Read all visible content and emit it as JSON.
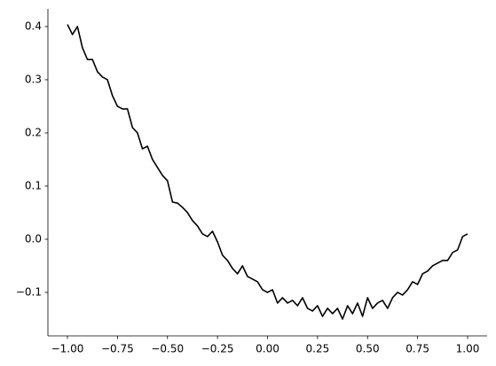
{
  "chart_data": {
    "type": "line",
    "x": [
      -1.0,
      -0.975,
      -0.95,
      -0.925,
      -0.9,
      -0.875,
      -0.85,
      -0.825,
      -0.8,
      -0.775,
      -0.75,
      -0.725,
      -0.7,
      -0.675,
      -0.65,
      -0.625,
      -0.6,
      -0.575,
      -0.55,
      -0.525,
      -0.5,
      -0.475,
      -0.45,
      -0.425,
      -0.4,
      -0.375,
      -0.35,
      -0.325,
      -0.3,
      -0.275,
      -0.25,
      -0.225,
      -0.2,
      -0.175,
      -0.15,
      -0.125,
      -0.1,
      -0.075,
      -0.05,
      -0.025,
      0.0,
      0.025,
      0.05,
      0.075,
      0.1,
      0.125,
      0.15,
      0.175,
      0.2,
      0.225,
      0.25,
      0.275,
      0.3,
      0.325,
      0.35,
      0.375,
      0.4,
      0.425,
      0.45,
      0.475,
      0.5,
      0.525,
      0.55,
      0.575,
      0.6,
      0.625,
      0.65,
      0.675,
      0.7,
      0.725,
      0.75,
      0.775,
      0.8,
      0.825,
      0.85,
      0.875,
      0.9,
      0.925,
      0.95,
      0.975,
      1.0
    ],
    "series": [
      {
        "color": "#000000",
        "values": [
          0.404,
          0.385,
          0.4,
          0.36,
          0.338,
          0.338,
          0.315,
          0.305,
          0.3,
          0.27,
          0.25,
          0.245,
          0.245,
          0.21,
          0.2,
          0.17,
          0.175,
          0.15,
          0.135,
          0.12,
          0.11,
          0.07,
          0.068,
          0.06,
          0.05,
          0.035,
          0.025,
          0.01,
          0.005,
          0.015,
          -0.005,
          -0.03,
          -0.04,
          -0.055,
          -0.065,
          -0.05,
          -0.07,
          -0.075,
          -0.08,
          -0.095,
          -0.1,
          -0.095,
          -0.12,
          -0.11,
          -0.12,
          -0.115,
          -0.125,
          -0.11,
          -0.13,
          -0.135,
          -0.125,
          -0.145,
          -0.13,
          -0.14,
          -0.13,
          -0.15,
          -0.125,
          -0.14,
          -0.12,
          -0.145,
          -0.11,
          -0.13,
          -0.12,
          -0.115,
          -0.13,
          -0.11,
          -0.1,
          -0.105,
          -0.095,
          -0.08,
          -0.085,
          -0.065,
          -0.06,
          -0.05,
          -0.045,
          -0.04,
          -0.04,
          -0.025,
          -0.02,
          0.005,
          0.01
        ]
      }
    ],
    "xlim": [
      -1.0976,
      1.0976
    ],
    "ylim": [
      -0.1817,
      0.4333
    ],
    "xticks": [
      {
        "value": -1.0,
        "label": "−1.00"
      },
      {
        "value": -0.75,
        "label": "−0.75"
      },
      {
        "value": -0.5,
        "label": "−0.50"
      },
      {
        "value": -0.25,
        "label": "−0.25"
      },
      {
        "value": 0,
        "label": "0.00"
      },
      0.25,
      {
        "value": 0.5,
        "label": "0.50"
      },
      0.75,
      {
        "value": 1,
        "label": "1.00"
      }
    ],
    "yticks": [
      {
        "value": -0.1,
        "label": "−0.1"
      },
      {
        "value": 0,
        "label": "0.0"
      },
      0.1,
      0.2,
      0.3,
      0.4
    ],
    "grid": false
  }
}
